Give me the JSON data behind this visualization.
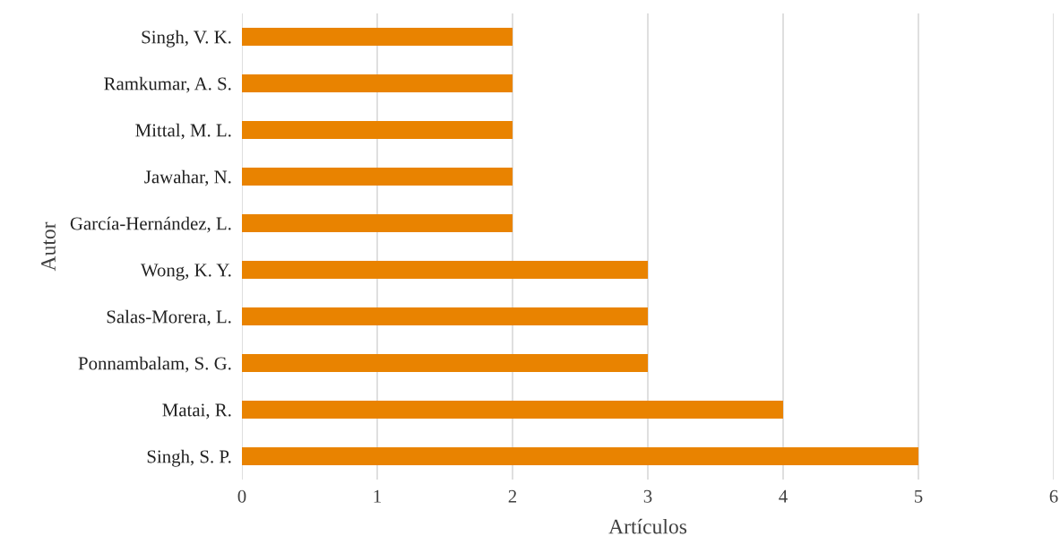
{
  "chart_data": {
    "type": "bar",
    "orientation": "horizontal",
    "xlabel": "Artículos",
    "ylabel": "Autor",
    "categories": [
      "Singh, V. K.",
      "Ramkumar, A. S.",
      "Mittal, M. L.",
      "Jawahar, N.",
      "García-Hernández, L.",
      "Wong, K. Y.",
      "Salas-Morera, L.",
      "Ponnambalam, S. G.",
      "Matai, R.",
      "Singh, S. P."
    ],
    "values": [
      2,
      2,
      2,
      2,
      2,
      3,
      3,
      3,
      4,
      5
    ],
    "color": "#e98300",
    "xlim": [
      0,
      6
    ],
    "xticks": [
      0,
      1,
      2,
      3,
      4,
      5,
      6
    ],
    "grid": "x",
    "legend": false
  }
}
